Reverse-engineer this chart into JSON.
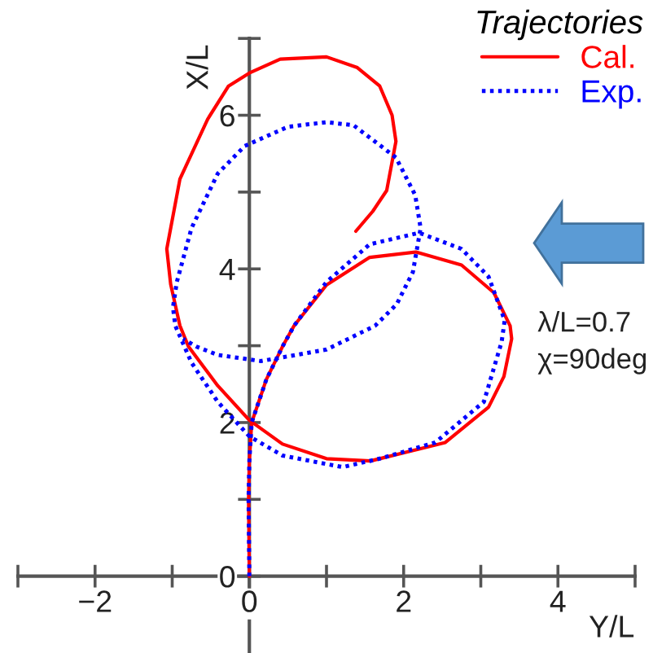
{
  "chart_data": {
    "type": "line",
    "xlabel": "Y/L",
    "ylabel": "X/L",
    "legend_title": "Trajectories",
    "annotations": [
      "λ/L=0.7",
      "χ=90deg"
    ],
    "series": [
      {
        "name": "Cal.",
        "color": "#ff0000",
        "line_style": "solid",
        "x": [
          0,
          -0.01,
          0,
          0.03,
          0.22,
          0.43,
          0.58,
          1.0,
          1.56,
          2.16,
          2.75,
          3.17,
          3.38,
          3.4,
          3.3,
          3.1,
          2.54,
          1.57,
          1.0,
          0.43,
          0,
          -0.41,
          -0.79,
          -0.9,
          -1.02,
          -1.07,
          -0.9,
          -0.54,
          -0.27,
          0,
          0.4,
          1.0,
          1.4,
          1.69,
          1.85,
          1.9,
          1.78,
          1.6,
          1.38
        ],
        "values": [
          0,
          1.0,
          1.5,
          2.0,
          2.56,
          2.99,
          3.26,
          3.79,
          4.15,
          4.22,
          4.05,
          3.69,
          3.26,
          3.09,
          2.6,
          2.2,
          1.74,
          1.5,
          1.53,
          1.72,
          2.03,
          2.48,
          2.99,
          3.26,
          3.8,
          4.26,
          5.17,
          5.95,
          6.38,
          6.55,
          6.73,
          6.76,
          6.62,
          6.38,
          6.0,
          5.66,
          5.02,
          4.75,
          4.49
        ]
      },
      {
        "name": "Exp.",
        "color": "#0000ff",
        "line_style": "dotted",
        "x": [
          0,
          -0.01,
          0,
          0.03,
          0.22,
          0.43,
          0.58,
          1.0,
          1.56,
          2.2,
          2.75,
          3.1,
          3.31,
          3.27,
          3.04,
          2.41,
          1.69,
          1.21,
          1.0,
          0.43,
          0,
          -0.41,
          -0.75,
          -0.96,
          -0.99,
          -0.94,
          -0.75,
          -0.41,
          -0.06,
          0.5,
          1.0,
          1.35,
          1.9,
          2.15,
          2.22,
          2.12,
          1.91,
          1.63,
          1.0,
          0.15,
          -0.41,
          -0.69,
          -0.86
        ],
        "values": [
          0,
          1.0,
          1.5,
          2.0,
          2.56,
          2.99,
          3.26,
          3.83,
          4.32,
          4.47,
          4.26,
          3.9,
          3.33,
          3.05,
          2.27,
          1.74,
          1.53,
          1.42,
          1.46,
          1.57,
          1.82,
          2.27,
          2.78,
          3.26,
          3.5,
          3.83,
          4.53,
          5.24,
          5.6,
          5.85,
          5.91,
          5.87,
          5.45,
          4.96,
          4.53,
          3.96,
          3.54,
          3.26,
          2.95,
          2.8,
          2.88,
          2.99,
          3.09
        ]
      }
    ],
    "xlim": [
      -3,
      5
    ],
    "xticks": [
      {
        "value": -3,
        "label": null
      },
      -2,
      {
        "value": -1,
        "label": null
      },
      0,
      {
        "value": 1,
        "label": null
      },
      2,
      {
        "value": 3,
        "label": null
      },
      4,
      {
        "value": 5,
        "label": null
      }
    ],
    "ylim": [
      -1,
      7
    ],
    "yticks": [
      0,
      {
        "value": 1,
        "label": null
      },
      2,
      {
        "value": 3,
        "label": null
      },
      4,
      {
        "value": 5,
        "label": null
      },
      6,
      {
        "value": 7,
        "label": null
      }
    ],
    "grid": false,
    "legend": "top right",
    "marker": "none"
  }
}
